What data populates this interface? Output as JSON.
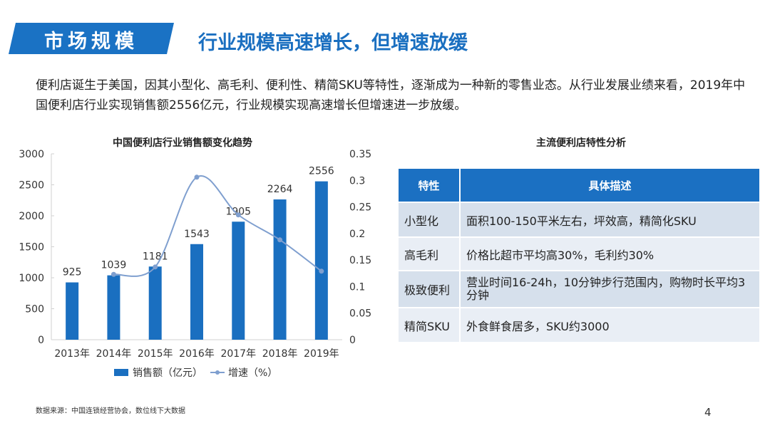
{
  "header": {
    "section": "市场规模",
    "headline": "行业规模高速增长，但增速放缓"
  },
  "intro": "便利店诞生于美国，因其小型化、高毛利、便利性、精简SKU等特性，逐渐成为一种新的零售业态。从行业发展业绩来看，2019年中国便利店行业实现销售额2556亿元，行业规模实现高速增长但增速进一步放缓。",
  "chart_data": {
    "type": "bar+line",
    "title": "中国便利店行业销售额变化趋势",
    "categories": [
      "2013年",
      "2014年",
      "2015年",
      "2016年",
      "2017年",
      "2018年",
      "2019年"
    ],
    "series": [
      {
        "name": "销售额（亿元）",
        "type": "bar",
        "axis": "left",
        "values": [
          925,
          1039,
          1181,
          1543,
          1905,
          2264,
          2556
        ],
        "color": "#1a6fc0"
      },
      {
        "name": "增速（%）",
        "type": "line",
        "axis": "right",
        "values": [
          null,
          0.123,
          0.137,
          0.306,
          0.235,
          0.188,
          0.129
        ],
        "color": "#7f9fcf"
      }
    ],
    "ylim": [
      0,
      3000
    ],
    "yticks": [
      "0",
      "500",
      "1000",
      "1500",
      "2000",
      "2500",
      "3000"
    ],
    "y2lim": [
      0,
      0.35
    ],
    "y2ticks": [
      "0",
      "0.05",
      "0.1",
      "0.15",
      "0.2",
      "0.25",
      "0.3",
      "0.35"
    ],
    "legend": "bottom"
  },
  "table": {
    "title": "主流便利店特性分析",
    "headers": [
      "特性",
      "具体描述"
    ],
    "rows": [
      [
        "小型化",
        "面积100-150平米左右，坪效高，精简化SKU"
      ],
      [
        "高毛利",
        "价格比超市平均高30%，毛利约30%"
      ],
      [
        "极致便利",
        "营业时间16-24h，10分钟步行范围内，购物时长平均3分钟"
      ],
      [
        "精简SKU",
        "外食鲜食居多，SKU约3000"
      ]
    ]
  },
  "footer": {
    "source": "数据来源：中国连锁经营协会，数位线下大数据",
    "page": "4"
  }
}
